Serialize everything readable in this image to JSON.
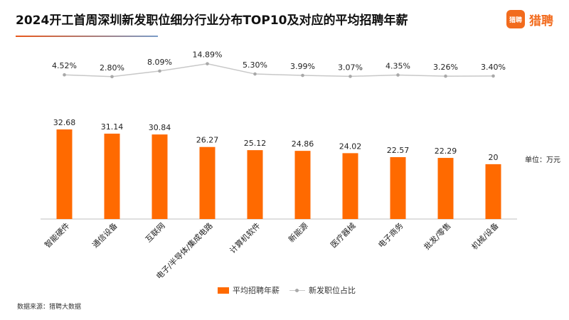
{
  "title": "2024开工首周深圳新发职位细分行业分布TOP10及对应的平均招聘年薪",
  "brand": {
    "icon_text": "猎聘",
    "name": "猎聘"
  },
  "source": "数据来源：猎聘大数据",
  "unit_label": "单位：万元",
  "colors": {
    "bar": "#ff6a00",
    "line": "#c8c8c8",
    "marker": "#a9a9a9",
    "brand": "#f26b1d"
  },
  "chart_data": {
    "type": "bar",
    "categories": [
      "智能硬件",
      "通信设备",
      "互联网",
      "电子/半导体/集成电路",
      "计算机软件",
      "新能源",
      "医疗器械",
      "电子商务",
      "批发/零售",
      "机械/设备"
    ],
    "series": [
      {
        "name": "平均招聘年薪",
        "type": "bar",
        "values": [
          32.68,
          31.14,
          30.84,
          26.27,
          25.12,
          24.86,
          24.02,
          22.57,
          22.29,
          20
        ]
      },
      {
        "name": "新发职位占比",
        "type": "line",
        "values": [
          4.52,
          2.8,
          8.09,
          14.89,
          5.3,
          3.99,
          3.07,
          4.35,
          3.26,
          3.4
        ],
        "unit": "%"
      }
    ],
    "bar_labels": [
      "32.68",
      "31.14",
      "30.84",
      "26.27",
      "25.12",
      "24.86",
      "24.02",
      "22.57",
      "22.29",
      "20"
    ],
    "line_labels": [
      "4.52%",
      "2.80%",
      "8.09%",
      "14.89%",
      "5.30%",
      "3.99%",
      "3.07%",
      "4.35%",
      "3.26%",
      "3.40%"
    ],
    "ylim_bar": [
      0,
      40
    ],
    "ylim_line": [
      0,
      16
    ],
    "legend": {
      "position": "bottom",
      "entries": [
        "平均招聘年薪",
        "新发职位占比"
      ]
    },
    "grid": false
  }
}
